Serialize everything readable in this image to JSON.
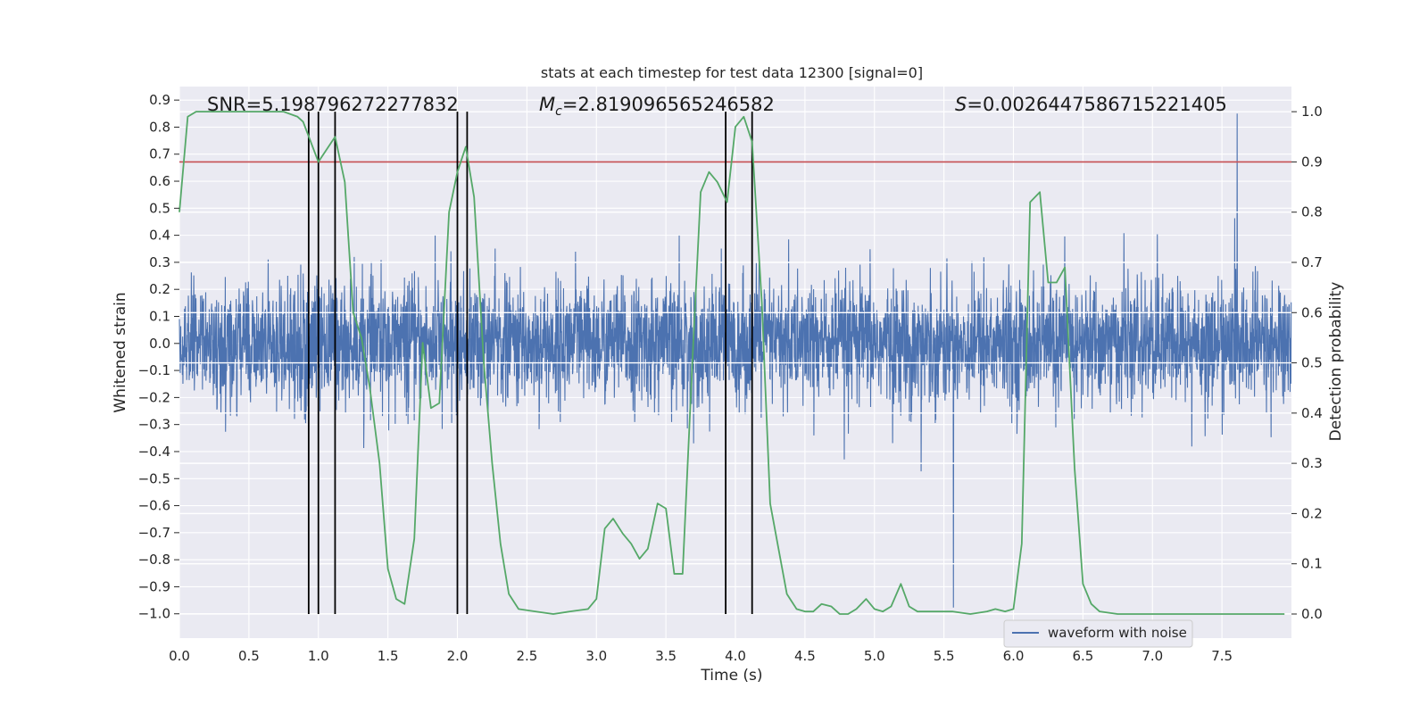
{
  "chart_data": {
    "type": "line",
    "title": "stats at each timestep for test data 12300 [signal=0]",
    "xlabel": "Time (s)",
    "ylabel_left": "Whitened strain",
    "ylabel_right": "Detection probability",
    "xlim": [
      0.0,
      8.0
    ],
    "ylim_left": [
      -1.09,
      0.95
    ],
    "ylim_right": [
      -0.048,
      1.05
    ],
    "x_ticks": [
      "0.0",
      "0.5",
      "1.0",
      "1.5",
      "2.0",
      "2.5",
      "3.0",
      "3.5",
      "4.0",
      "4.5",
      "5.0",
      "5.5",
      "6.0",
      "6.5",
      "7.0",
      "7.5"
    ],
    "y_ticks_left": [
      "0.9",
      "0.8",
      "0.7",
      "0.6",
      "0.5",
      "0.4",
      "0.3",
      "0.2",
      "0.1",
      "0.0",
      "−0.1",
      "−0.2",
      "−0.3",
      "−0.4",
      "−0.5",
      "−0.6",
      "−0.7",
      "−0.8",
      "−0.9",
      "−1.0"
    ],
    "y_ticks_right": [
      "1.0",
      "0.9",
      "0.8",
      "0.7",
      "0.6",
      "0.5",
      "0.4",
      "0.3",
      "0.2",
      "0.1",
      "0.0"
    ],
    "annotations": {
      "snr": "SNR=5.198796272277832",
      "mc_symbol": "M",
      "mc_sub": "c",
      "mc_value": "=2.819096565246582",
      "s_symbol": "S",
      "s_value": "=0.0026447586715221405"
    },
    "legend": [
      "waveform with noise"
    ],
    "waveform": {
      "name": "waveform with noise",
      "color": "#4c72b0",
      "sample_rate_hz": 512,
      "envelope": 0.3,
      "peak_positive": 0.85,
      "peak_negative": -0.99
    },
    "threshold": {
      "value": 0.9,
      "axis": "right",
      "color": "#c44e52"
    },
    "vertical_markers": [
      0.93,
      1.0,
      1.12,
      2.0,
      2.07,
      3.93,
      4.12
    ],
    "probability": {
      "name": "Detection probability",
      "color": "#55a868",
      "points": [
        [
          0.0,
          0.8
        ],
        [
          0.06,
          0.99
        ],
        [
          0.12,
          1.0
        ],
        [
          0.5,
          1.0
        ],
        [
          0.75,
          1.0
        ],
        [
          0.85,
          0.99
        ],
        [
          0.89,
          0.98
        ],
        [
          1.0,
          0.9
        ],
        [
          1.12,
          0.95
        ],
        [
          1.19,
          0.86
        ],
        [
          1.25,
          0.6
        ],
        [
          1.31,
          0.55
        ],
        [
          1.37,
          0.45
        ],
        [
          1.44,
          0.3
        ],
        [
          1.5,
          0.09
        ],
        [
          1.56,
          0.03
        ],
        [
          1.62,
          0.02
        ],
        [
          1.69,
          0.15
        ],
        [
          1.75,
          0.54
        ],
        [
          1.81,
          0.41
        ],
        [
          1.87,
          0.42
        ],
        [
          1.94,
          0.8
        ],
        [
          2.0,
          0.88
        ],
        [
          2.06,
          0.93
        ],
        [
          2.12,
          0.83
        ],
        [
          2.19,
          0.5
        ],
        [
          2.25,
          0.3
        ],
        [
          2.31,
          0.14
        ],
        [
          2.37,
          0.04
        ],
        [
          2.44,
          0.01
        ],
        [
          2.56,
          0.005
        ],
        [
          2.69,
          0.0
        ],
        [
          2.81,
          0.005
        ],
        [
          2.94,
          0.01
        ],
        [
          3.0,
          0.03
        ],
        [
          3.06,
          0.17
        ],
        [
          3.12,
          0.19
        ],
        [
          3.19,
          0.16
        ],
        [
          3.25,
          0.14
        ],
        [
          3.31,
          0.11
        ],
        [
          3.37,
          0.13
        ],
        [
          3.44,
          0.22
        ],
        [
          3.5,
          0.21
        ],
        [
          3.56,
          0.08
        ],
        [
          3.62,
          0.08
        ],
        [
          3.69,
          0.5
        ],
        [
          3.75,
          0.84
        ],
        [
          3.81,
          0.88
        ],
        [
          3.87,
          0.86
        ],
        [
          3.94,
          0.82
        ],
        [
          4.0,
          0.97
        ],
        [
          4.06,
          0.99
        ],
        [
          4.12,
          0.94
        ],
        [
          4.19,
          0.62
        ],
        [
          4.25,
          0.22
        ],
        [
          4.31,
          0.13
        ],
        [
          4.37,
          0.04
        ],
        [
          4.44,
          0.01
        ],
        [
          4.5,
          0.005
        ],
        [
          4.56,
          0.005
        ],
        [
          4.62,
          0.02
        ],
        [
          4.69,
          0.015
        ],
        [
          4.75,
          0.0
        ],
        [
          4.81,
          0.0
        ],
        [
          4.87,
          0.01
        ],
        [
          4.94,
          0.03
        ],
        [
          5.0,
          0.01
        ],
        [
          5.06,
          0.005
        ],
        [
          5.12,
          0.015
        ],
        [
          5.19,
          0.06
        ],
        [
          5.25,
          0.015
        ],
        [
          5.31,
          0.005
        ],
        [
          5.44,
          0.005
        ],
        [
          5.56,
          0.005
        ],
        [
          5.69,
          0.0
        ],
        [
          5.81,
          0.005
        ],
        [
          5.87,
          0.01
        ],
        [
          5.94,
          0.005
        ],
        [
          6.0,
          0.01
        ],
        [
          6.06,
          0.14
        ],
        [
          6.12,
          0.82
        ],
        [
          6.19,
          0.84
        ],
        [
          6.25,
          0.66
        ],
        [
          6.31,
          0.66
        ],
        [
          6.37,
          0.69
        ],
        [
          6.44,
          0.29
        ],
        [
          6.5,
          0.06
        ],
        [
          6.56,
          0.02
        ],
        [
          6.62,
          0.005
        ],
        [
          6.75,
          0.0
        ],
        [
          7.0,
          0.0
        ],
        [
          7.25,
          0.0
        ],
        [
          7.5,
          0.0
        ],
        [
          7.75,
          0.0
        ],
        [
          7.95,
          0.0
        ]
      ]
    }
  }
}
